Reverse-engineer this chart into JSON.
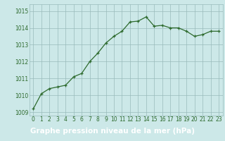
{
  "x": [
    0,
    1,
    2,
    3,
    4,
    5,
    6,
    7,
    8,
    9,
    10,
    11,
    12,
    13,
    14,
    15,
    16,
    17,
    18,
    19,
    20,
    21,
    22,
    23
  ],
  "y": [
    1009.2,
    1010.1,
    1010.4,
    1010.5,
    1010.6,
    1011.1,
    1011.3,
    1012.0,
    1012.5,
    1013.1,
    1013.5,
    1013.8,
    1014.35,
    1014.4,
    1014.65,
    1014.1,
    1014.15,
    1014.0,
    1014.0,
    1013.8,
    1013.5,
    1013.6,
    1013.8,
    1013.8
  ],
  "line_color": "#2d6a2d",
  "marker_color": "#2d6a2d",
  "bg_color": "#cce8e8",
  "xlabel_bg_color": "#336633",
  "grid_color": "#99bbbb",
  "xlabel": "Graphe pression niveau de la mer (hPa)",
  "xlabel_color": "#ffffff",
  "tick_color": "#2d6a2d",
  "ylim": [
    1008.8,
    1015.4
  ],
  "yticks": [
    1009,
    1010,
    1011,
    1012,
    1013,
    1014,
    1015
  ],
  "xticks": [
    0,
    1,
    2,
    3,
    4,
    5,
    6,
    7,
    8,
    9,
    10,
    11,
    12,
    13,
    14,
    15,
    16,
    17,
    18,
    19,
    20,
    21,
    22,
    23
  ],
  "font_size_axis": 5.5,
  "font_size_xlabel": 7.5,
  "line_width": 0.9,
  "marker_size": 3.5
}
